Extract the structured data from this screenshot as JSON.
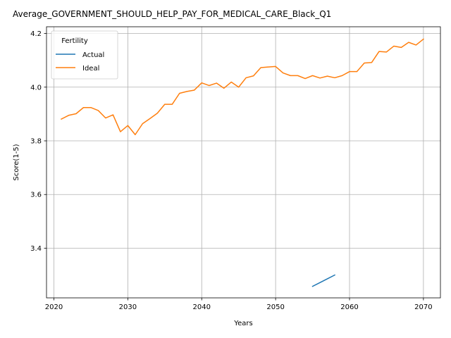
{
  "chart_data": {
    "type": "line",
    "title": "Average_GOVERNMENT_SHOULD_HELP_PAY_FOR_MEDICAL_CARE_Black_Q1",
    "xlabel": "Years",
    "ylabel": "Score(1-5)",
    "xlim": [
      2019,
      2072.3
    ],
    "ylim": [
      3.215,
      4.225
    ],
    "xticks": [
      2020,
      2030,
      2040,
      2050,
      2060,
      2070
    ],
    "xtick_labels": [
      "2020",
      "2030",
      "2040",
      "2050",
      "2060",
      "2070"
    ],
    "yticks": [
      3.4,
      3.6,
      3.8,
      4.0,
      4.2
    ],
    "ytick_labels": [
      "3.4",
      "3.6",
      "3.8",
      "4.0",
      "4.2"
    ],
    "grid": true,
    "legend": {
      "title": "Fertility",
      "placement": "top-left"
    },
    "series": [
      {
        "name": "Actual",
        "color": "#1f77b4",
        "x": [
          2055,
          2056,
          2057,
          2058
        ],
        "y": [
          3.258,
          3.272,
          3.286,
          3.3
        ]
      },
      {
        "name": "Ideal",
        "color": "#ff7f0e",
        "x": [
          2021,
          2022,
          2023,
          2024,
          2025,
          2026,
          2027,
          2028,
          2029,
          2030,
          2031,
          2032,
          2033,
          2034,
          2035,
          2036,
          2037,
          2038,
          2039,
          2040,
          2041,
          2042,
          2043,
          2044,
          2045,
          2046,
          2047,
          2048,
          2049,
          2050,
          2051,
          2052,
          2053,
          2054,
          2055,
          2056,
          2057,
          2058,
          2059,
          2060,
          2061,
          2062,
          2063,
          2064,
          2065,
          2066,
          2067,
          2068,
          2069,
          2070
        ],
        "y": [
          3.881,
          3.895,
          3.901,
          3.924,
          3.924,
          3.913,
          3.885,
          3.897,
          3.834,
          3.857,
          3.823,
          3.864,
          3.883,
          3.903,
          3.936,
          3.936,
          3.977,
          3.984,
          3.989,
          4.016,
          4.006,
          4.015,
          3.996,
          4.019,
          4.0,
          4.035,
          4.042,
          4.073,
          4.075,
          4.077,
          4.053,
          4.043,
          4.043,
          4.032,
          4.043,
          4.034,
          4.041,
          4.035,
          4.043,
          4.058,
          4.058,
          4.09,
          4.092,
          4.133,
          4.131,
          4.153,
          4.148,
          4.167,
          4.157,
          4.179
        ]
      }
    ]
  }
}
